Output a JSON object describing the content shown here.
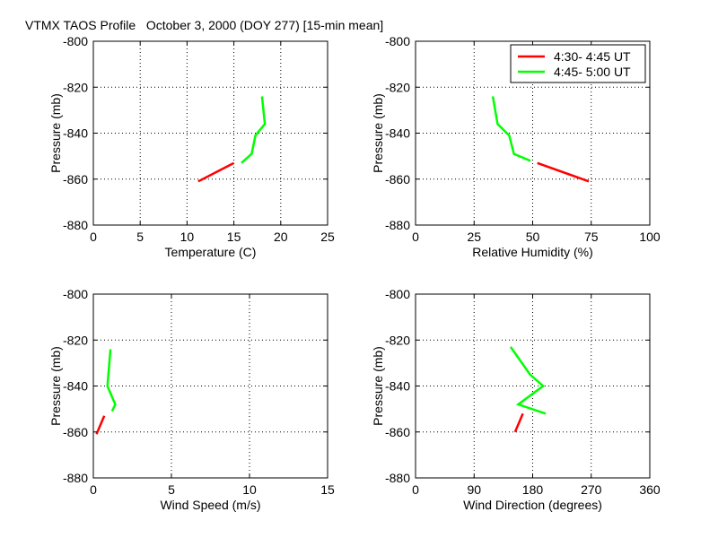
{
  "title": "VTMX TAOS Profile   October 3, 2000 (DOY 277) [15-min mean]",
  "colors": {
    "series1": "#ff0000",
    "series2": "#00ff00",
    "axis": "#000000",
    "grid": "#000000",
    "background": "#ffffff"
  },
  "legend": {
    "placement": "top-right of relative humidity panel",
    "entries": [
      "4:30- 4:45 UT",
      "4:45- 5:00 UT"
    ]
  },
  "chart_data": [
    {
      "type": "line",
      "xlabel": "Temperature (C)",
      "ylabel": "Pressure (mb)",
      "xlim": [
        0,
        25
      ],
      "ylim": [
        -880,
        -800
      ],
      "xticks": [
        0,
        5,
        10,
        15,
        20,
        25
      ],
      "yticks": [
        -880,
        -860,
        -840,
        -820,
        -800
      ],
      "grid": true,
      "series": [
        {
          "name": "4:30- 4:45 UT",
          "color": "#ff0000",
          "x": [
            11.2,
            15.0
          ],
          "y": [
            -861,
            -853
          ]
        },
        {
          "name": "4:45- 5:00 UT",
          "color": "#00ff00",
          "x": [
            15.8,
            16.9,
            17.3,
            18.3,
            18.0
          ],
          "y": [
            -853,
            -849,
            -841,
            -836,
            -824
          ]
        }
      ]
    },
    {
      "type": "line",
      "xlabel": "Relative Humidity (%)",
      "ylabel": "Pressure (mb)",
      "xlim": [
        0,
        100
      ],
      "ylim": [
        -880,
        -800
      ],
      "xticks": [
        0,
        25,
        50,
        75,
        100
      ],
      "yticks": [
        -880,
        -860,
        -840,
        -820,
        -800
      ],
      "grid": true,
      "legend": true,
      "series": [
        {
          "name": "4:30- 4:45 UT",
          "color": "#ff0000",
          "x": [
            74,
            52
          ],
          "y": [
            -861,
            -853
          ]
        },
        {
          "name": "4:45- 5:00 UT",
          "color": "#00ff00",
          "x": [
            49,
            42,
            40,
            35,
            33
          ],
          "y": [
            -852,
            -849,
            -841,
            -836,
            -824
          ]
        }
      ]
    },
    {
      "type": "line",
      "xlabel": "Wind Speed (m/s)",
      "ylabel": "Pressure (mb)",
      "xlim": [
        0,
        15
      ],
      "ylim": [
        -880,
        -800
      ],
      "xticks": [
        0,
        5,
        10,
        15
      ],
      "yticks": [
        -880,
        -860,
        -840,
        -820,
        -800
      ],
      "grid": true,
      "series": [
        {
          "name": "4:30- 4:45 UT",
          "color": "#ff0000",
          "x": [
            0.2,
            0.7
          ],
          "y": [
            -861,
            -853
          ]
        },
        {
          "name": "4:45- 5:00 UT",
          "color": "#00ff00",
          "x": [
            1.2,
            1.4,
            0.9,
            1.1
          ],
          "y": [
            -851,
            -848,
            -840,
            -824
          ]
        }
      ]
    },
    {
      "type": "line",
      "xlabel": "Wind Direction (degrees)",
      "ylabel": "Pressure (mb)",
      "xlim": [
        0,
        360
      ],
      "ylim": [
        -880,
        -800
      ],
      "xticks": [
        0,
        90,
        180,
        270,
        360
      ],
      "yticks": [
        -880,
        -860,
        -840,
        -820,
        -800
      ],
      "grid": true,
      "series": [
        {
          "name": "4:30- 4:45 UT",
          "color": "#ff0000",
          "x": [
            153,
            165
          ],
          "y": [
            -860,
            -852
          ]
        },
        {
          "name": "4:45- 5:00 UT",
          "color": "#00ff00",
          "x": [
            200,
            158,
            196,
            176,
            146
          ],
          "y": [
            -852,
            -848,
            -840,
            -835,
            -823
          ]
        }
      ]
    }
  ]
}
